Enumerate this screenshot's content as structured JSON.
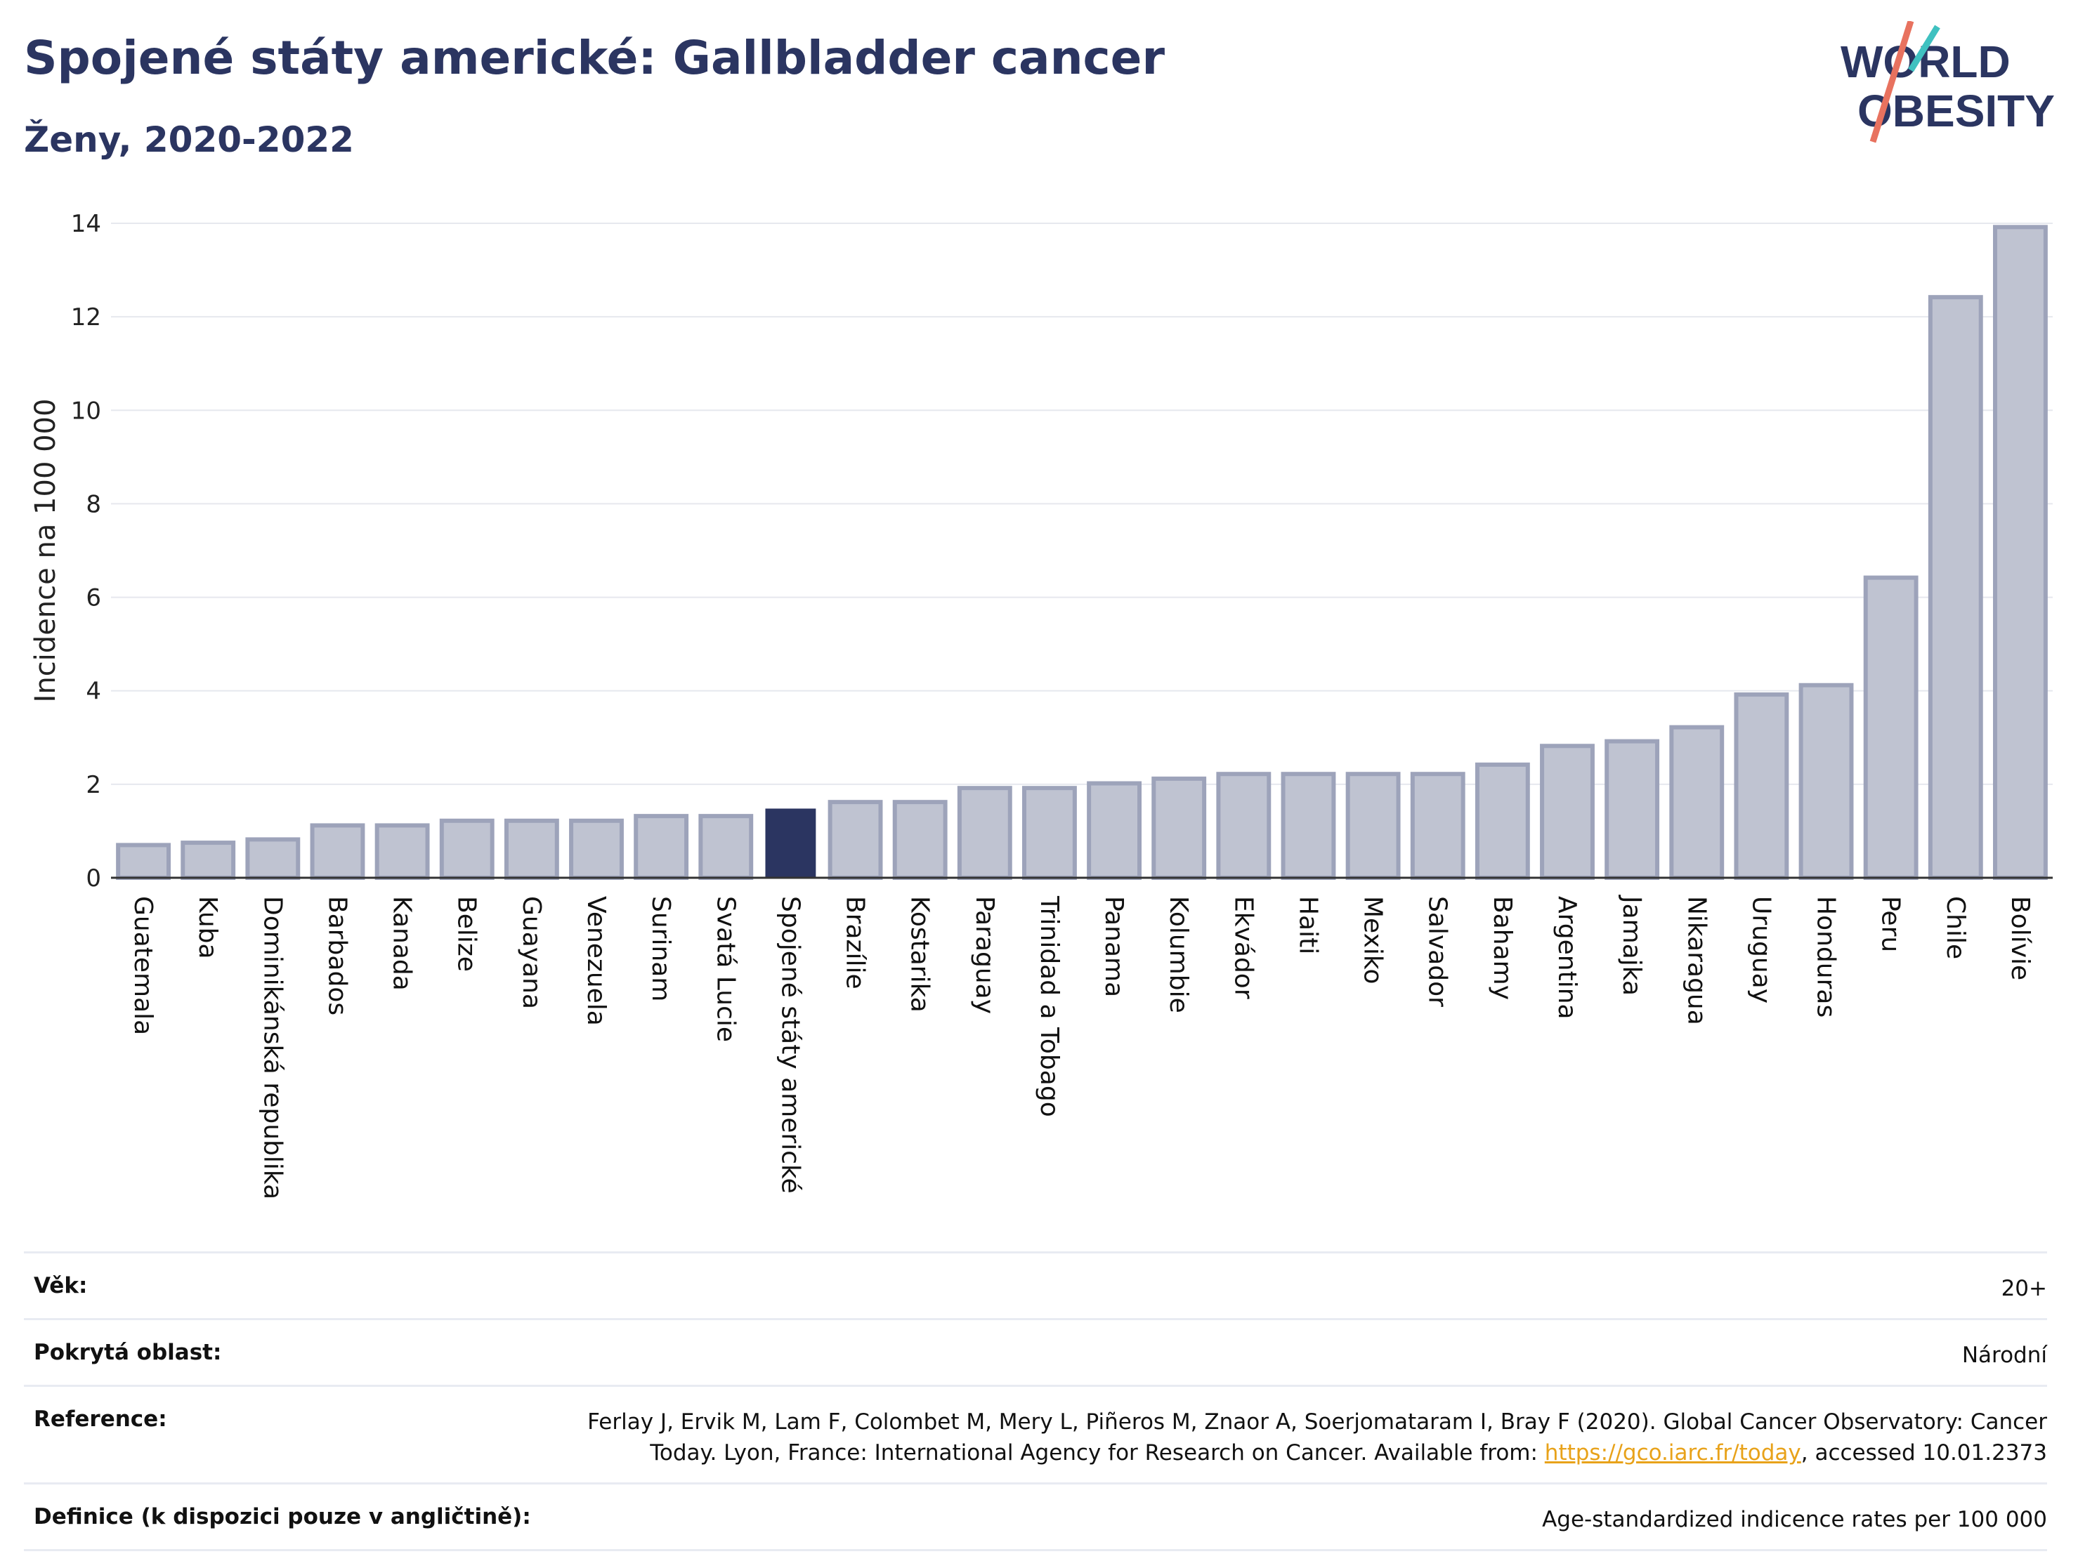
{
  "header": {
    "title": "Spojené státy americké: Gallbladder cancer",
    "subtitle": "Ženy, 2020-2022"
  },
  "logo": {
    "line1": "WORLD",
    "line2": "OBESITY"
  },
  "colors": {
    "highlight": "#2b3561",
    "bar": "#bfc3d1",
    "bar_border": "#9da3ba",
    "title": "#2b3561",
    "link": "#e8a21a"
  },
  "chart_data": {
    "type": "bar",
    "title": "Spojené státy americké: Gallbladder cancer",
    "subtitle": "Ženy, 2020-2022",
    "ylabel": "Incidence na 100 000",
    "xlabel": "",
    "ylim": [
      0,
      14
    ],
    "yticks": [
      0,
      2,
      4,
      6,
      8,
      10,
      12,
      14
    ],
    "grid": true,
    "highlight_category": "Spojené státy americké",
    "categories": [
      "Guatemala",
      "Kuba",
      "Dominikánská republika",
      "Barbados",
      "Kanada",
      "Belize",
      "Guayana",
      "Venezuela",
      "Surinam",
      "Svatá Lucie",
      "Spojené státy americké",
      "Brazílie",
      "Kostarika",
      "Paraguay",
      "Trinidad a Tobago",
      "Panama",
      "Kolumbie",
      "Ekvádor",
      "Haiti",
      "Mexiko",
      "Salvador",
      "Bahamy",
      "Argentina",
      "Jamajka",
      "Nikaragua",
      "Uruguay",
      "Honduras",
      "Peru",
      "Chile",
      "Bolívie"
    ],
    "values": [
      0.7,
      0.75,
      0.82,
      1.12,
      1.12,
      1.22,
      1.22,
      1.22,
      1.32,
      1.32,
      1.48,
      1.62,
      1.62,
      1.92,
      1.92,
      2.02,
      2.12,
      2.22,
      2.22,
      2.22,
      2.22,
      2.42,
      2.82,
      2.92,
      3.22,
      3.92,
      4.12,
      6.42,
      12.42,
      13.92
    ]
  },
  "meta": {
    "age_label": "Věk:",
    "age_value": "20+",
    "area_label": "Pokrytá oblast:",
    "area_value": "Národní",
    "reference_label": "Reference:",
    "reference_text": "Ferlay J, Ervik M, Lam F, Colombet M, Mery L, Piñeros M, Znaor A, Soerjomataram I, Bray F (2020). Global Cancer Observatory: Cancer Today. Lyon, France: International Agency for Research on Cancer. Available from: ",
    "reference_link": "https://gco.iarc.fr/today",
    "reference_suffix": ", accessed 10.01.2373",
    "definition_label": "Definice (k dispozici pouze v angličtině):",
    "definition_value": "Age-standardized indicence rates per 100 000"
  }
}
